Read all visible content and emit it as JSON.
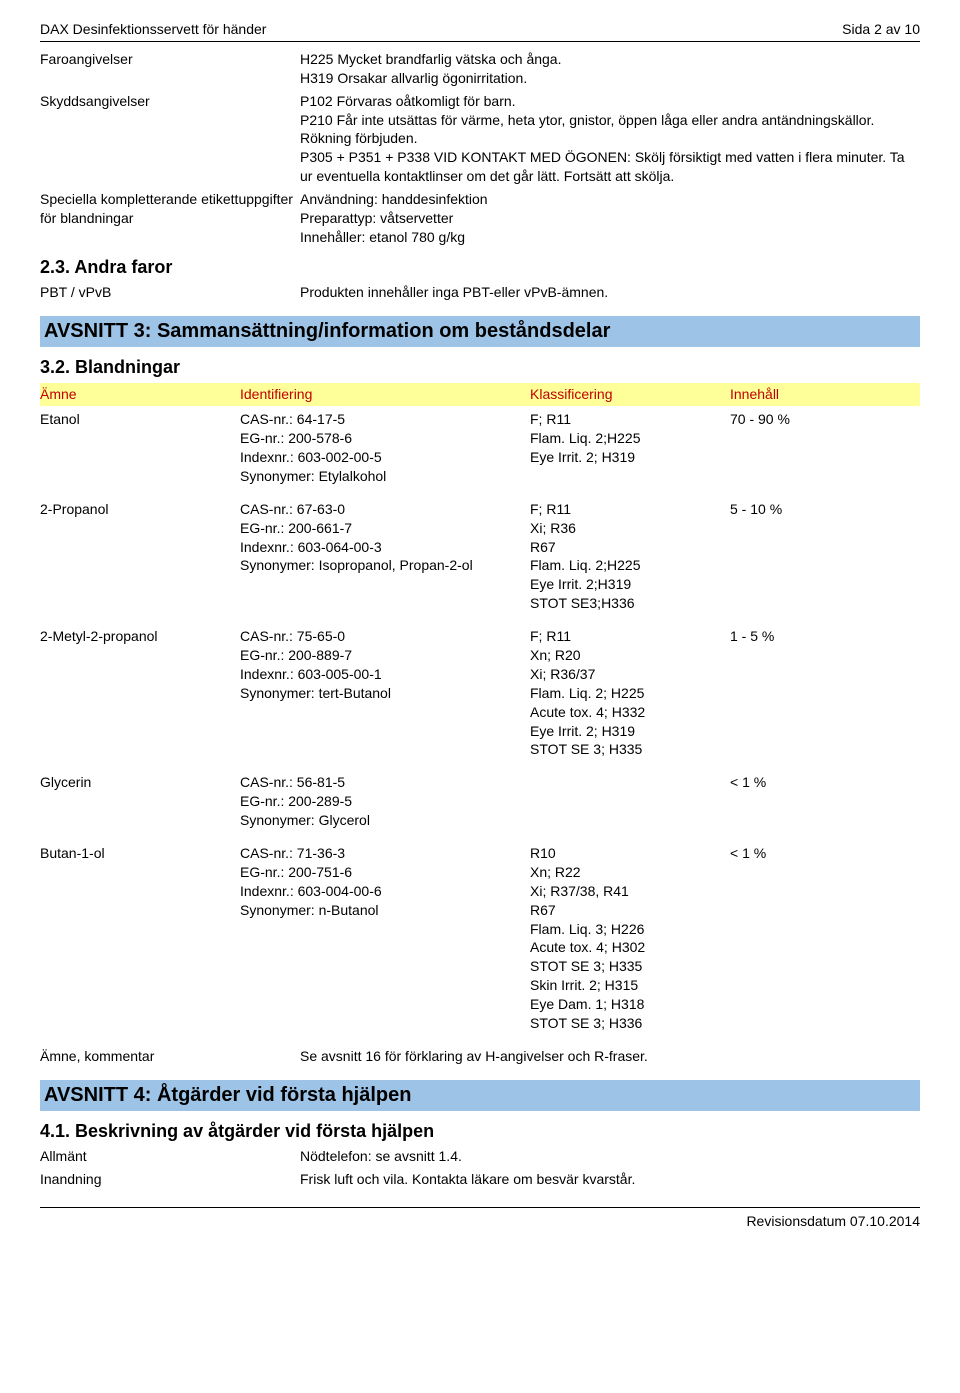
{
  "header": {
    "title": "DAX Desinfektionsservett för händer",
    "page": "Sida 2 av 10"
  },
  "kvBlock1": [
    {
      "label": "Faroangivelser",
      "value": "H225 Mycket brandfarlig vätska och ånga.\nH319 Orsakar allvarlig ögonirritation."
    },
    {
      "label": "Skyddsangivelser",
      "value": "P102 Förvaras oåtkomligt för barn.\nP210 Får inte utsättas för värme, heta ytor, gnistor, öppen låga eller andra antändningskällor. Rökning förbjuden.\nP305 + P351 + P338 VID KONTAKT MED ÖGONEN: Skölj försiktigt med vatten i flera minuter. Ta ur eventuella kontaktlinser om det går lätt. Fortsätt att skölja."
    },
    {
      "label": "Speciella kompletterande etikettuppgifter för blandningar",
      "value": "Användning: handdesinfektion\nPreparattyp: våtservetter\nInnehåller: etanol 780 g/kg"
    }
  ],
  "sub23": "2.3. Andra faror",
  "kvBlock2": [
    {
      "label": "PBT / vPvB",
      "value": "Produkten innehåller inga PBT-eller vPvB-ämnen."
    }
  ],
  "section3": {
    "banner": "AVSNITT 3: Sammansättning/information om beståndsdelar",
    "sub": "3.2. Blandningar",
    "cols": {
      "sub": "Ämne",
      "id": "Identifiering",
      "cls": "Klassificering",
      "inn": "Innehåll"
    },
    "rows": [
      {
        "sub": "Etanol",
        "id": [
          "CAS-nr.: 64-17-5",
          "EG-nr.: 200-578-6",
          "Indexnr.: 603-002-00-5",
          "Synonymer: Etylalkohol"
        ],
        "cls": [
          "F; R11",
          "Flam. Liq. 2;H225",
          "Eye Irrit. 2; H319"
        ],
        "inn": "70 - 90 %"
      },
      {
        "sub": "2-Propanol",
        "id": [
          "CAS-nr.: 67-63-0",
          "EG-nr.: 200-661-7",
          "Indexnr.: 603-064-00-3",
          "Synonymer: Isopropanol, Propan-2-ol"
        ],
        "cls": [
          "F; R11",
          "Xi; R36",
          "R67",
          "Flam. Liq. 2;H225",
          "Eye Irrit. 2;H319",
          "STOT SE3;H336"
        ],
        "inn": "5 - 10 %"
      },
      {
        "sub": "2-Metyl-2-propanol",
        "id": [
          "CAS-nr.: 75-65-0",
          "EG-nr.: 200-889-7",
          "Indexnr.: 603-005-00-1",
          "Synonymer: tert-Butanol"
        ],
        "cls": [
          "F; R11",
          "Xn; R20",
          "Xi; R36/37",
          "Flam. Liq. 2; H225",
          "Acute tox. 4; H332",
          "Eye Irrit. 2; H319",
          "STOT SE 3; H335"
        ],
        "inn": "1 - 5 %"
      },
      {
        "sub": "Glycerin",
        "id": [
          "CAS-nr.: 56-81-5",
          "EG-nr.: 200-289-5",
          "Synonymer: Glycerol"
        ],
        "cls": [],
        "inn": "< 1 %"
      },
      {
        "sub": "Butan-1-ol",
        "id": [
          "CAS-nr.: 71-36-3",
          "EG-nr.: 200-751-6",
          "Indexnr.: 603-004-00-6",
          "Synonymer: n-Butanol"
        ],
        "cls": [
          "R10",
          "Xn; R22",
          "Xi; R37/38, R41",
          "R67",
          "Flam. Liq. 3; H226",
          "Acute tox. 4; H302",
          "STOT SE 3; H335",
          "Skin Irrit. 2; H315",
          "Eye Dam. 1; H318",
          "STOT SE 3; H336"
        ],
        "inn": "< 1 %"
      }
    ],
    "note": {
      "label": "Ämne, kommentar",
      "value": "Se avsnitt 16 för förklaring av H-angivelser och R-fraser."
    }
  },
  "section4": {
    "banner": "AVSNITT 4: Åtgärder vid första hjälpen",
    "sub": "4.1. Beskrivning av åtgärder vid första hjälpen",
    "rows": [
      {
        "label": "Allmänt",
        "value": "Nödtelefon: se avsnitt 1.4."
      },
      {
        "label": "Inandning",
        "value": "Frisk luft och vila. Kontakta läkare om besvär kvarstår."
      }
    ]
  },
  "footer": {
    "revision": "Revisionsdatum 07.10.2014"
  }
}
